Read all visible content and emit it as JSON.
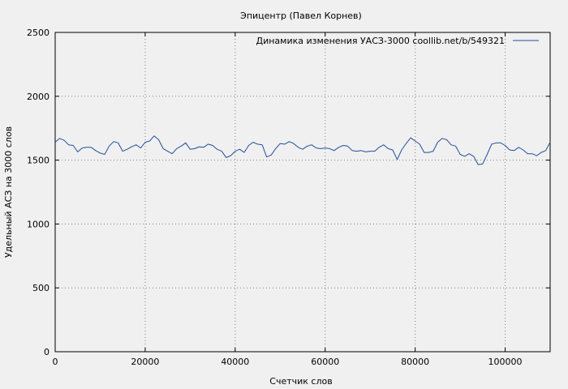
{
  "chart_data": {
    "type": "line",
    "title": "Эпицентр (Павел Корнев)",
    "xlabel": "Счетчик слов",
    "ylabel": "Удельный АСЗ на 3000 слов",
    "xlim": [
      0,
      110000
    ],
    "ylim": [
      0,
      2500
    ],
    "xticks": [
      0,
      20000,
      40000,
      60000,
      80000,
      100000
    ],
    "yticks": [
      0,
      500,
      1000,
      1500,
      2000,
      2500
    ],
    "grid": true,
    "legend_position": "top-right",
    "series": [
      {
        "name": "Динамика изменения УАСЗ-3000  coollib.net/b/549321",
        "color": "#1f4e9e",
        "x": [
          0,
          1000,
          2000,
          3000,
          4000,
          5000,
          6000,
          7000,
          8000,
          9000,
          10000,
          11000,
          12000,
          13000,
          14000,
          15000,
          16000,
          17000,
          18000,
          19000,
          20000,
          21000,
          22000,
          23000,
          24000,
          25000,
          26000,
          27000,
          28000,
          29000,
          30000,
          31000,
          32000,
          33000,
          34000,
          35000,
          36000,
          37000,
          38000,
          39000,
          40000,
          41000,
          42000,
          43000,
          44000,
          45000,
          46000,
          47000,
          48000,
          49000,
          50000,
          51000,
          52000,
          53000,
          54000,
          55000,
          56000,
          57000,
          58000,
          59000,
          60000,
          61000,
          62000,
          63000,
          64000,
          65000,
          66000,
          67000,
          68000,
          69000,
          70000,
          71000,
          72000,
          73000,
          74000,
          75000,
          76000,
          77000,
          78000,
          79000,
          80000,
          81000,
          82000,
          83000,
          84000,
          85000,
          86000,
          87000,
          88000,
          89000,
          90000,
          91000,
          92000,
          93000,
          94000,
          95000,
          96000,
          97000,
          98000,
          99000,
          100000,
          101000,
          102000,
          103000,
          104000,
          105000,
          106000,
          107000,
          108000,
          109000,
          110000
        ],
        "values": [
          1640,
          1670,
          1655,
          1620,
          1615,
          1565,
          1595,
          1600,
          1600,
          1575,
          1555,
          1545,
          1610,
          1645,
          1635,
          1570,
          1585,
          1605,
          1620,
          1595,
          1640,
          1650,
          1690,
          1660,
          1590,
          1570,
          1550,
          1590,
          1610,
          1635,
          1585,
          1590,
          1605,
          1600,
          1625,
          1615,
          1585,
          1570,
          1520,
          1535,
          1570,
          1585,
          1560,
          1615,
          1640,
          1625,
          1620,
          1525,
          1540,
          1590,
          1630,
          1625,
          1645,
          1630,
          1600,
          1585,
          1610,
          1620,
          1595,
          1590,
          1595,
          1590,
          1575,
          1600,
          1615,
          1610,
          1575,
          1570,
          1575,
          1565,
          1570,
          1570,
          1600,
          1620,
          1590,
          1580,
          1505,
          1580,
          1630,
          1675,
          1650,
          1625,
          1560,
          1560,
          1570,
          1640,
          1670,
          1660,
          1620,
          1610,
          1545,
          1530,
          1550,
          1530,
          1465,
          1470,
          1545,
          1625,
          1635,
          1635,
          1615,
          1580,
          1575,
          1600,
          1580,
          1550,
          1550,
          1535,
          1560,
          1575,
          1640
        ]
      }
    ]
  }
}
